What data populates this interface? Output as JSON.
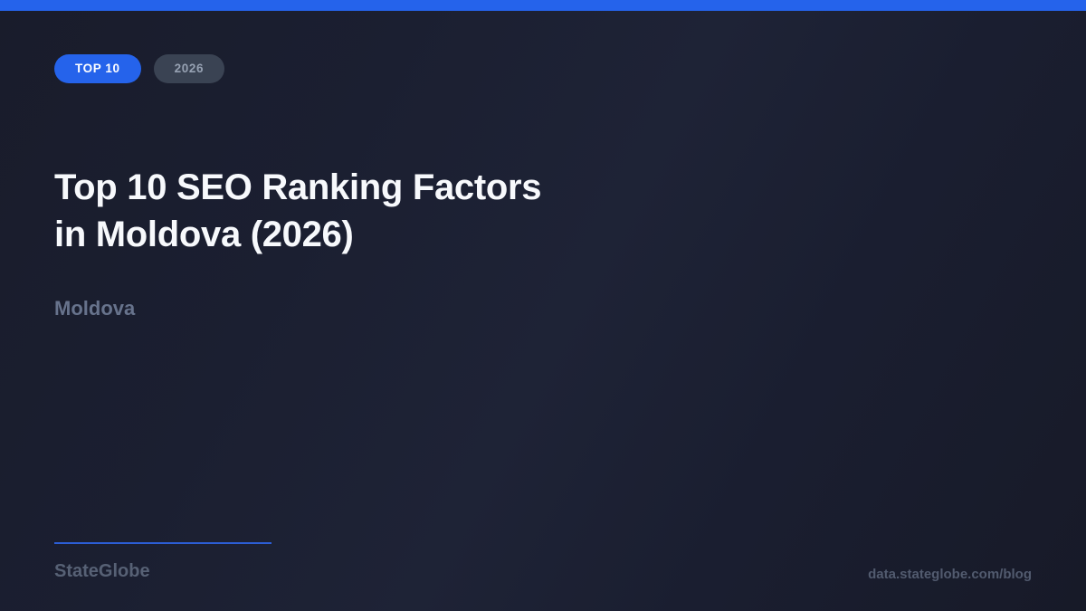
{
  "badges": [
    {
      "label": "TOP 10",
      "background": "#2563eb",
      "text_color": "#ffffff"
    },
    {
      "label": "2026",
      "background": "#3a4353",
      "text_color": "#96a1b2"
    }
  ],
  "title": {
    "line1": "Top 10 SEO Ranking Factors",
    "line2": "in Moldova (2026)"
  },
  "subtitle": "Moldova",
  "footer": {
    "brand": "StateGlobe",
    "url": "data.stateglobe.com/blog"
  },
  "colors": {
    "accent_bar": "#2563eb",
    "background": "#1a1d2e",
    "title_text": "#f7f9fc",
    "subtitle_text": "#67738c",
    "brand_text": "#576175",
    "url_text": "#525b6f",
    "divider": "#2c5ed6"
  }
}
